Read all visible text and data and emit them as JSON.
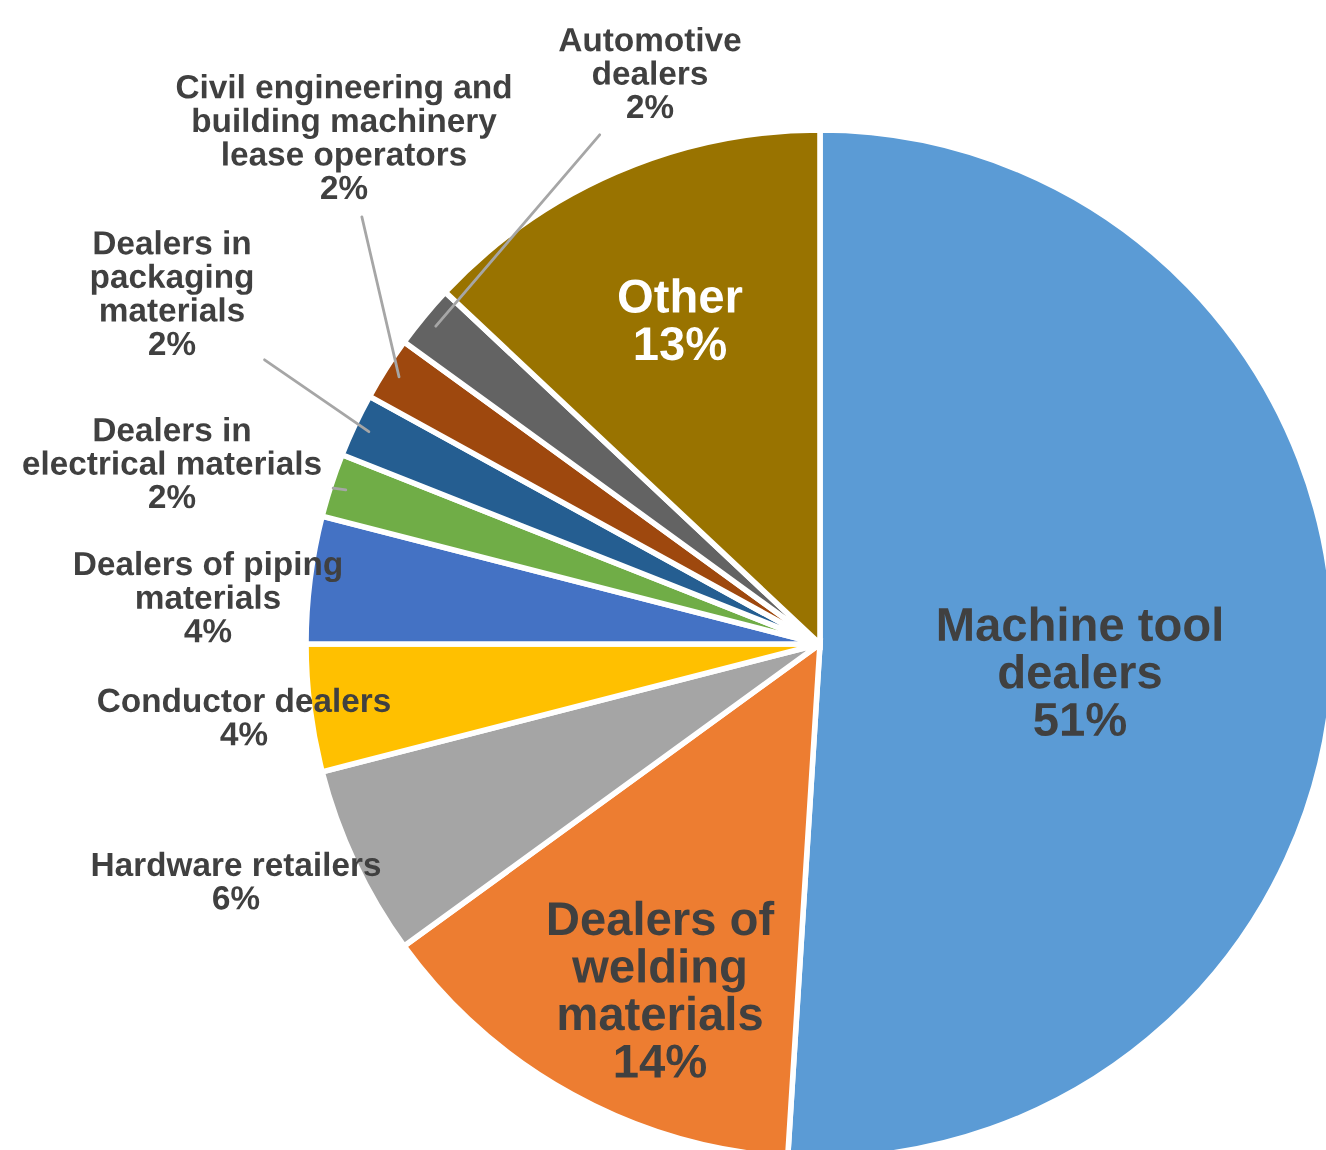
{
  "chart_data": {
    "type": "pie",
    "categories": [
      "Machine tool dealers",
      "Dealers of welding materials",
      "Hardware retailers",
      "Conductor dealers",
      "Dealers of piping materials",
      "Dealers in electrical materials",
      "Dealers in packaging materials",
      "Civil engineering and building machinery lease operators",
      "Automotive dealers",
      "Other"
    ],
    "values": [
      51,
      14,
      6,
      4,
      4,
      2,
      2,
      2,
      2,
      13
    ],
    "colors": [
      "#5b9bd5",
      "#ed7d31",
      "#a5a5a5",
      "#ffc000",
      "#4472c4",
      "#70ad47",
      "#255e91",
      "#9e480e",
      "#636363",
      "#997300"
    ],
    "value_labels": [
      "51%",
      "14%",
      "6%",
      "4%",
      "4%",
      "2%",
      "2%",
      "2%",
      "2%",
      "13%"
    ]
  }
}
